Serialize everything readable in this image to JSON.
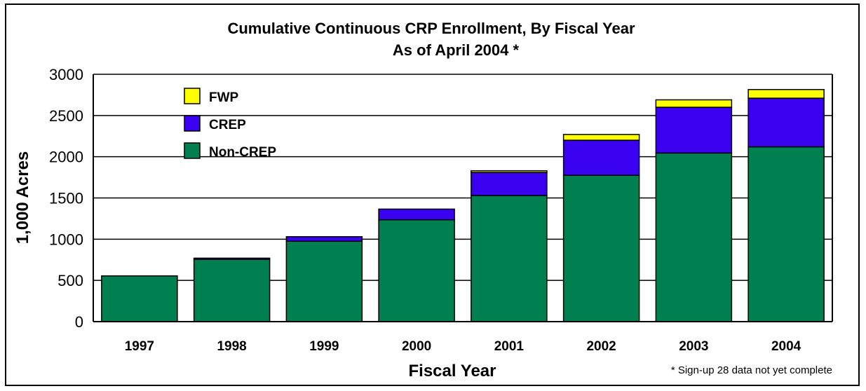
{
  "chart_data": {
    "type": "bar",
    "stacked": true,
    "title": "Cumulative Continuous CRP Enrollment, By Fiscal Year",
    "subtitle": "As of April 2004 *",
    "xlabel": "Fiscal Year",
    "ylabel": "1,000 Acres",
    "ylim": [
      0,
      3000
    ],
    "yticks": [
      0,
      500,
      1000,
      1500,
      2000,
      2500,
      3000
    ],
    "grid": true,
    "legend_position": "top-left",
    "categories": [
      "1997",
      "1998",
      "1999",
      "2000",
      "2001",
      "2002",
      "2003",
      "2004"
    ],
    "series": [
      {
        "name": "Non-CREP",
        "color": "#008050",
        "values": [
          555,
          755,
          975,
          1235,
          1530,
          1775,
          2045,
          2120
        ]
      },
      {
        "name": "CREP",
        "color": "#3A00F0",
        "values": [
          0,
          15,
          55,
          130,
          280,
          425,
          555,
          590
        ]
      },
      {
        "name": "FWP",
        "color": "#FFFF00",
        "values": [
          0,
          0,
          0,
          0,
          20,
          70,
          90,
          105
        ]
      }
    ],
    "legend_order": [
      "FWP",
      "CREP",
      "Non-CREP"
    ],
    "footnote": "* Sign-up 28 data not yet complete"
  }
}
